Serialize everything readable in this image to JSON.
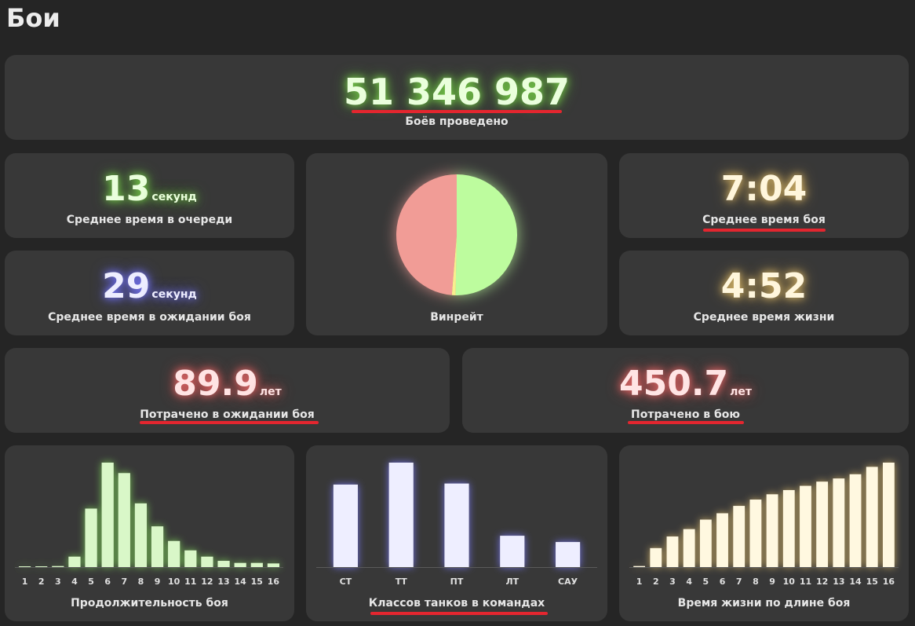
{
  "page": {
    "title": "Бои"
  },
  "total": {
    "value": "51 346 987",
    "label": "Боёв проведено"
  },
  "queue_time": {
    "value": "13",
    "unit": "секунд",
    "label": "Среднее время в очереди"
  },
  "wait_time": {
    "value": "29",
    "unit": "секунд",
    "label": "Среднее время в ожидании боя"
  },
  "winrate": {
    "label": "Винрейт"
  },
  "battle_time": {
    "value": "7:04",
    "label": "Среднее время боя"
  },
  "life_time": {
    "value": "4:52",
    "label": "Среднее время жизни"
  },
  "spent_waiting": {
    "value": "89.9",
    "unit": "лет",
    "label": "Потрачено в ожидании боя"
  },
  "spent_battle": {
    "value": "450.7",
    "unit": "лет",
    "label": "Потрачено в бою"
  },
  "colors": {
    "green": "#bdfc9e",
    "red": "#f19c96",
    "yellow": "#f8ee8e",
    "blue": "#f0f0ff",
    "cream": "#fff6dc",
    "card": "#383838",
    "bg": "#252525",
    "underline": "#e3262f"
  },
  "chart_data": [
    {
      "type": "pie",
      "title": "Винрейт",
      "slices": [
        {
          "name": "win",
          "value": 50.3,
          "color": "#bdfc9e"
        },
        {
          "name": "draw",
          "value": 1.0,
          "color": "#f8ee8e"
        },
        {
          "name": "loss",
          "value": 48.7,
          "color": "#f19c96"
        }
      ]
    },
    {
      "type": "bar",
      "title": "Продолжительность боя",
      "categories": [
        "1",
        "2",
        "3",
        "4",
        "5",
        "6",
        "7",
        "8",
        "9",
        "10",
        "11",
        "12",
        "13",
        "14",
        "15",
        "16"
      ],
      "values": [
        0.5,
        0.5,
        1,
        10,
        56,
        100,
        90,
        61,
        39,
        25,
        16,
        10,
        6,
        4,
        4,
        3.5
      ],
      "color": "#d9f7c8",
      "glow": "#7fd45a"
    },
    {
      "type": "bar",
      "title": "Классов танков в командах",
      "categories": [
        "СТ",
        "ТТ",
        "ПТ",
        "ЛТ",
        "САУ"
      ],
      "values": [
        79,
        100,
        80,
        30,
        24
      ],
      "color": "#eeeeff",
      "glow": "#7b7bff"
    },
    {
      "type": "bar",
      "title": "Время жизни по длине боя",
      "categories": [
        "1",
        "2",
        "3",
        "4",
        "5",
        "6",
        "7",
        "8",
        "9",
        "10",
        "11",
        "12",
        "13",
        "14",
        "15",
        "16"
      ],
      "values": [
        1,
        18,
        29,
        36,
        45,
        51,
        58,
        64,
        69,
        73,
        77,
        81,
        84,
        88,
        95,
        99
      ],
      "color": "#fff8e0",
      "glow": "#d9b86a"
    }
  ]
}
